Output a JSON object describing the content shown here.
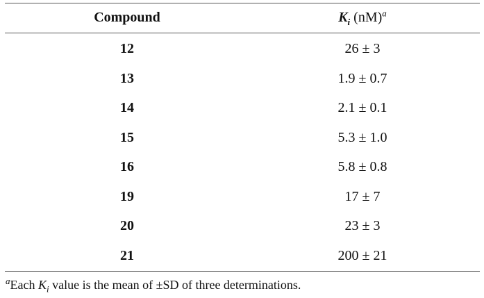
{
  "table": {
    "header": [
      "Compound",
      {
        "symbol": "K",
        "subscript": "i",
        "unit": "(nM)",
        "note_mark": "a"
      }
    ],
    "rows": [
      [
        "12",
        "26 ± 3"
      ],
      [
        "13",
        "1.9 ± 0.7"
      ],
      [
        "14",
        "2.1 ± 0.1"
      ],
      [
        "15",
        "5.3 ± 1.0"
      ],
      [
        "16",
        "5.8 ± 0.8"
      ],
      [
        "19",
        "17 ± 7"
      ],
      [
        "20",
        "23 ± 3"
      ],
      [
        "21",
        "200 ± 21"
      ]
    ],
    "footnote": {
      "mark": "a",
      "before": "Each ",
      "symbol": "K",
      "subscript": "i",
      "after": " value is the mean of ±SD of three determinations."
    }
  }
}
